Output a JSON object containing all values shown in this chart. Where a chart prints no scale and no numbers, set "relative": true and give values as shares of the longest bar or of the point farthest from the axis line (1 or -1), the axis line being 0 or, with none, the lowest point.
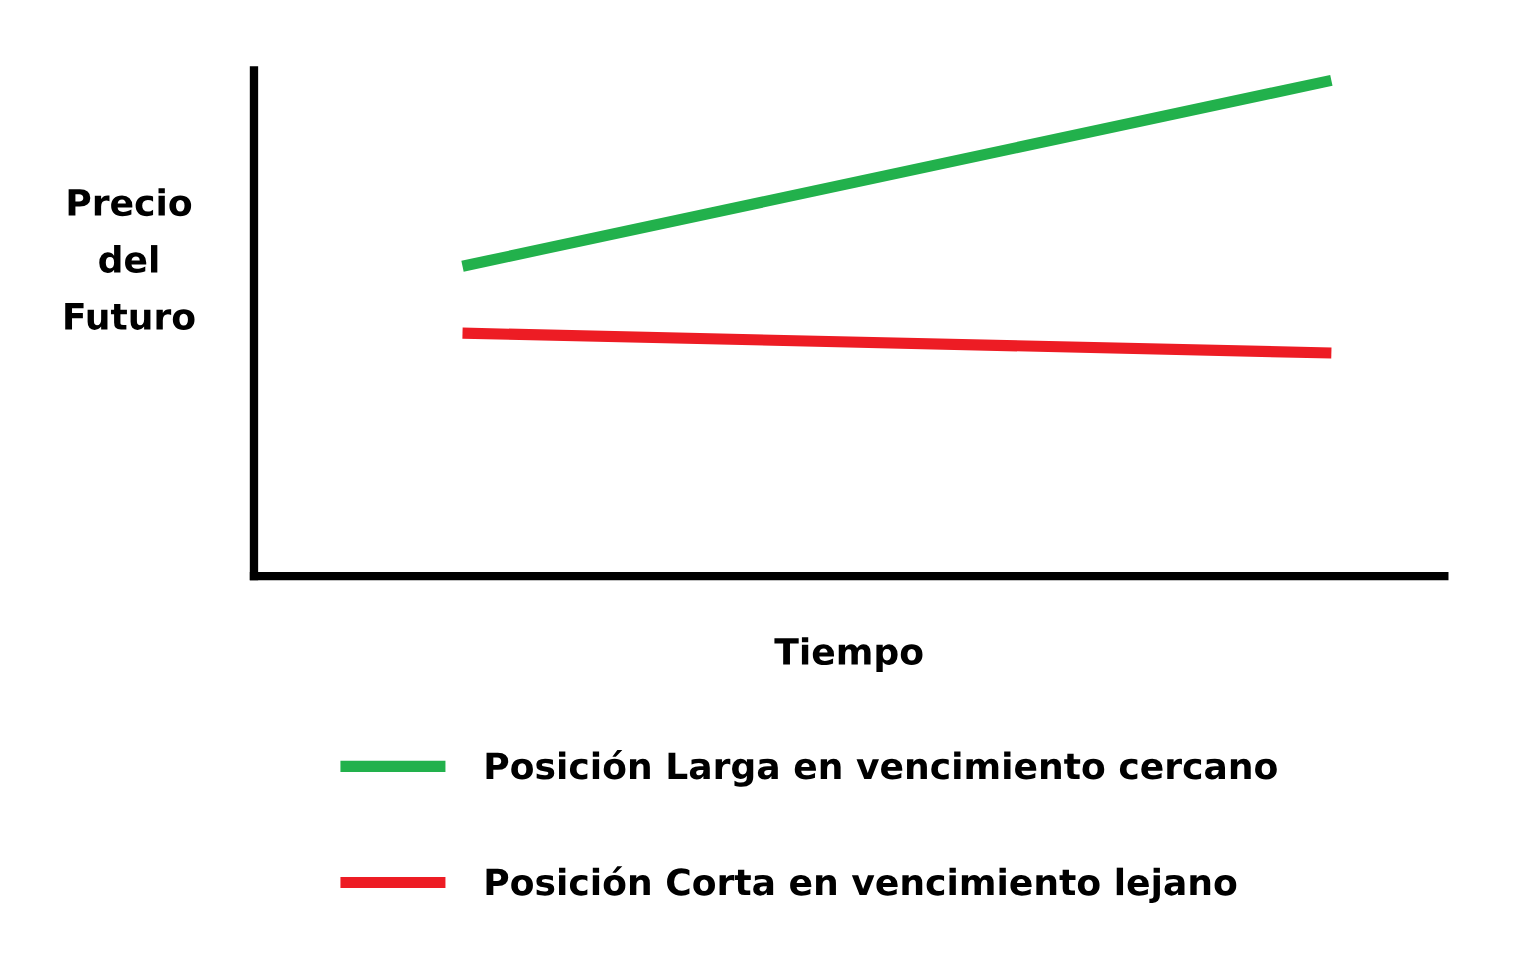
{
  "chart_data": {
    "type": "line",
    "relative": true,
    "xlabel": "Tiempo",
    "ylabel": "Precio\ndel\nFuturo",
    "categories": [
      null,
      null
    ],
    "legend": "bottom",
    "tick_labels": false,
    "marker": "none",
    "line_style": "solid",
    "series": [
      {
        "name": "Posición Larga en vencimiento cercano",
        "color": "#22b14c",
        "values": [
          0.625,
          1.0
        ]
      },
      {
        "name": "Posición Corta en vencimiento lejano",
        "color": "#ed1c24",
        "values": [
          0.49,
          0.45
        ]
      }
    ]
  }
}
